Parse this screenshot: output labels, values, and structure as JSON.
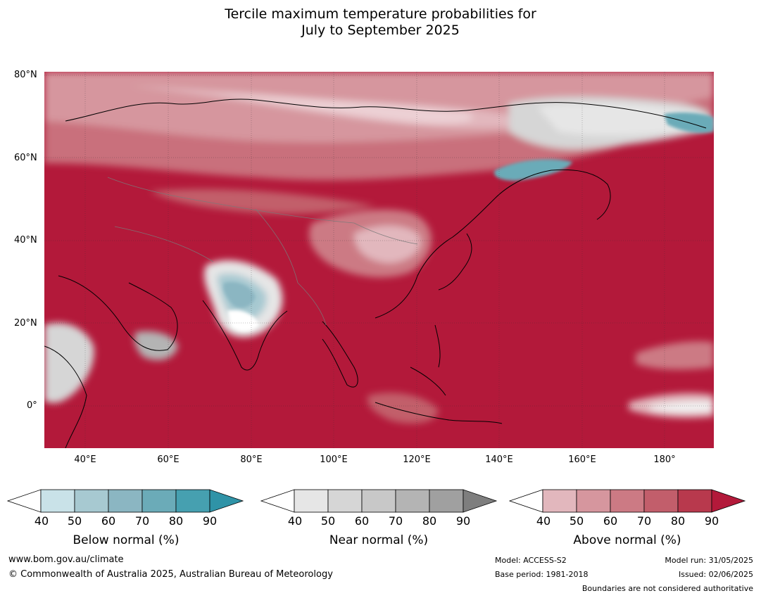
{
  "title_line1": "Tercile maximum temperature probabilities for",
  "title_line2": "July to September 2025",
  "latitude_labels": [
    "80°N",
    "60°N",
    "40°N",
    "20°N",
    "0°"
  ],
  "longitude_labels": [
    "40°E",
    "60°E",
    "80°E",
    "100°E",
    "120°E",
    "140°E",
    "160°E",
    "180°"
  ],
  "colorbars": [
    {
      "title": "Below normal (%)",
      "ticks": [
        "40",
        "50",
        "60",
        "70",
        "80",
        "90"
      ],
      "colors": [
        "#ffffff",
        "#c9e2e8",
        "#a7c9d1",
        "#8bb6c2",
        "#6babb8",
        "#46a0b0",
        "#2f93a7"
      ]
    },
    {
      "title": "Near normal (%)",
      "ticks": [
        "40",
        "50",
        "60",
        "70",
        "80",
        "90"
      ],
      "colors": [
        "#ffffff",
        "#e6e6e6",
        "#d6d6d6",
        "#c8c8c8",
        "#b4b4b4",
        "#a0a0a0",
        "#7e7e7e"
      ]
    },
    {
      "title": "Above normal (%)",
      "ticks": [
        "40",
        "50",
        "60",
        "70",
        "80",
        "90"
      ],
      "colors": [
        "#ffffff",
        "#e2b7bd",
        "#d6969e",
        "#cc7a84",
        "#c25e6b",
        "#b8394d",
        "#b3193a"
      ]
    }
  ],
  "footer": {
    "url": "www.bom.gov.au/climate",
    "copyright": "© Commonwealth of Australia 2025, Australian Bureau of Meteorology",
    "model": "Model: ACCESS-S2",
    "base_period": "Base period: 1981-2018",
    "model_run": "Model run: 31/05/2025",
    "issued": "Issued: 02/06/2025",
    "disclaimer": "Boundaries are not considered authoritative"
  }
}
